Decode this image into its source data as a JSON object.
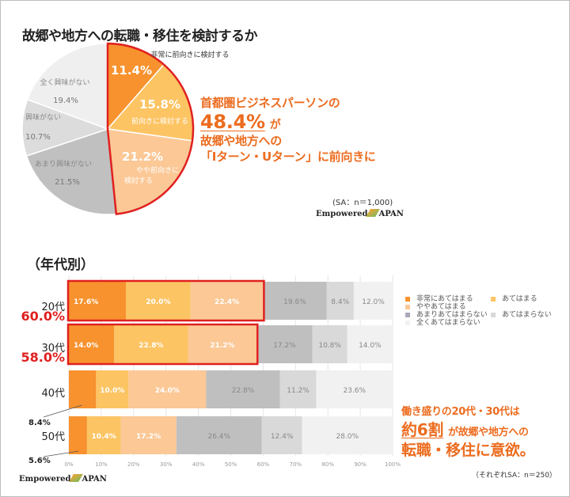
{
  "page": {
    "title": "故郷や地方への転職・移住を検討するか",
    "callout1": {
      "line1": "首都圏ビジネスパーソンの",
      "highlight": "48.4%",
      "suffix": "が",
      "line3": "故郷や地方への",
      "line4": "「Iターン・Uターン」に前向きに"
    },
    "sample_note_1": "(SA：n＝1,000)",
    "brand": {
      "left": "Empowered",
      "right": "APAN"
    },
    "subtitle": "（年代別）",
    "age_totals": [
      "60.0%",
      "58.0%"
    ],
    "callout_small": [
      "8.4%",
      "5.6%"
    ],
    "callout2": {
      "line1": "働き盛りの20代・30代は",
      "highlight": "約6割",
      "mid": "が故郷や地方への",
      "line3": "転職・移住に意欲。"
    },
    "sample_note_2": "（それぞれSA：n＝250）",
    "colors": {
      "accent_orange": "#ec6c1f",
      "highlight_red": "#e02020"
    }
  },
  "chart_data": [
    {
      "type": "pie",
      "title": "故郷や地方への転職・移住を検討するか",
      "categories": [
        "非常に前向きに検討する",
        "前向きに検討する",
        "やや前向きに検討する",
        "あまり興味がない",
        "興味がない",
        "全く興味がない"
      ],
      "values": [
        11.4,
        15.8,
        21.2,
        21.5,
        10.7,
        19.4
      ],
      "labels": [
        "11.4%",
        "15.8%",
        "21.2%",
        "21.5%",
        "10.7%",
        "19.4%"
      ],
      "colors": [
        "#f7922e",
        "#fcc463",
        "#fbc896",
        "#c0c0c0",
        "#dcdcdc",
        "#efefef"
      ],
      "highlight": {
        "slices": [
          0,
          1,
          2
        ],
        "total": "48.4%"
      },
      "n": "SA：n＝1,000"
    },
    {
      "type": "bar",
      "orientation": "horizontal-stacked",
      "title": "（年代別）",
      "categories": [
        "20代",
        "30代",
        "40代",
        "50代"
      ],
      "series": [
        {
          "name": "非常にあてはまる",
          "values": [
            17.6,
            14.0,
            8.4,
            5.6
          ],
          "color": "#f7922e"
        },
        {
          "name": "あてはまる",
          "values": [
            20.0,
            22.8,
            10.0,
            10.4
          ],
          "color": "#fcc463"
        },
        {
          "name": "ややあてはまる",
          "values": [
            22.4,
            21.2,
            24.0,
            17.2
          ],
          "color": "#fbc896"
        },
        {
          "name": "あまりあてはまらない",
          "values": [
            19.6,
            17.2,
            22.8,
            26.4
          ],
          "color": "#bfbfbf"
        },
        {
          "name": "あてはまらない",
          "values": [
            8.4,
            10.8,
            11.2,
            12.4
          ],
          "color": "#d9d9d9"
        },
        {
          "name": "全くあてはまらない",
          "values": [
            12.0,
            14.0,
            23.6,
            28.0
          ],
          "color": "#f1f1f1"
        }
      ],
      "value_labels_shown": {
        "20代": [
          "17.6%",
          "20.0%",
          "22.4%",
          "19.6%",
          "8.4%",
          "12.0%"
        ],
        "30代": [
          "14.0%",
          "22.8%",
          "21.2%",
          "17.2%",
          "10.8%",
          "14.0%"
        ],
        "40代": [
          "",
          "10.0%",
          "24.0%",
          "22.8%",
          "11.2%",
          "23.6%"
        ],
        "50代": [
          "",
          "10.4%",
          "17.2%",
          "26.4%",
          "12.4%",
          "28.0%"
        ]
      },
      "x_ticks": [
        "0%",
        "10%",
        "20%",
        "30%",
        "40%",
        "50%",
        "60%",
        "70%",
        "80%",
        "90%",
        "100%"
      ],
      "xlim": [
        0,
        100
      ],
      "grid": true,
      "legend_position": "right",
      "highlighted_rows": [
        "20代",
        "30代"
      ],
      "n": "それぞれSA：n＝250"
    }
  ]
}
